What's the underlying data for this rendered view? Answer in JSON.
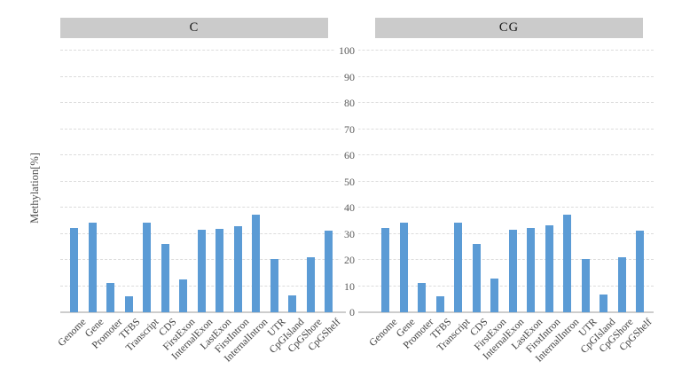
{
  "chart_data": {
    "type": "bar",
    "title": "",
    "ylabel": "Methylation[%]",
    "xlabel": "",
    "ylim": [
      0,
      100
    ],
    "yticks": [
      0,
      10,
      20,
      30,
      40,
      50,
      60,
      70,
      80,
      90,
      100
    ],
    "grid": "horizontal-dashed",
    "legend": "none",
    "categories": [
      "Genome",
      "Gene",
      "Promoter",
      "TFBS",
      "Transcript",
      "CDS",
      "FirstExon",
      "InternalExon",
      "LastExon",
      "FirstIntron",
      "InternalIntron",
      "UTR",
      "CpGIsland",
      "CpGShore",
      "CpGShelf"
    ],
    "panels": [
      {
        "title": "C"
      },
      {
        "title": "CG"
      }
    ],
    "series": [
      {
        "name": "C",
        "values": [
          32.1,
          34.1,
          11.2,
          6.0,
          34.1,
          26.0,
          12.7,
          31.4,
          32.0,
          33.0,
          37.2,
          20.2,
          6.6,
          21.0,
          31.1
        ]
      },
      {
        "name": "CG",
        "values": [
          32.2,
          34.2,
          11.3,
          6.1,
          34.2,
          26.1,
          12.8,
          31.5,
          32.1,
          33.1,
          37.3,
          20.3,
          6.7,
          21.1,
          31.2
        ]
      }
    ],
    "colors": {
      "bar": "#5B9BD5",
      "panel_header_bg": "#CBCBCB",
      "gridline": "#DCDCDC",
      "axis_line": "#CDCDCD",
      "tick_text": "#595959",
      "label_text": "#404040"
    }
  }
}
